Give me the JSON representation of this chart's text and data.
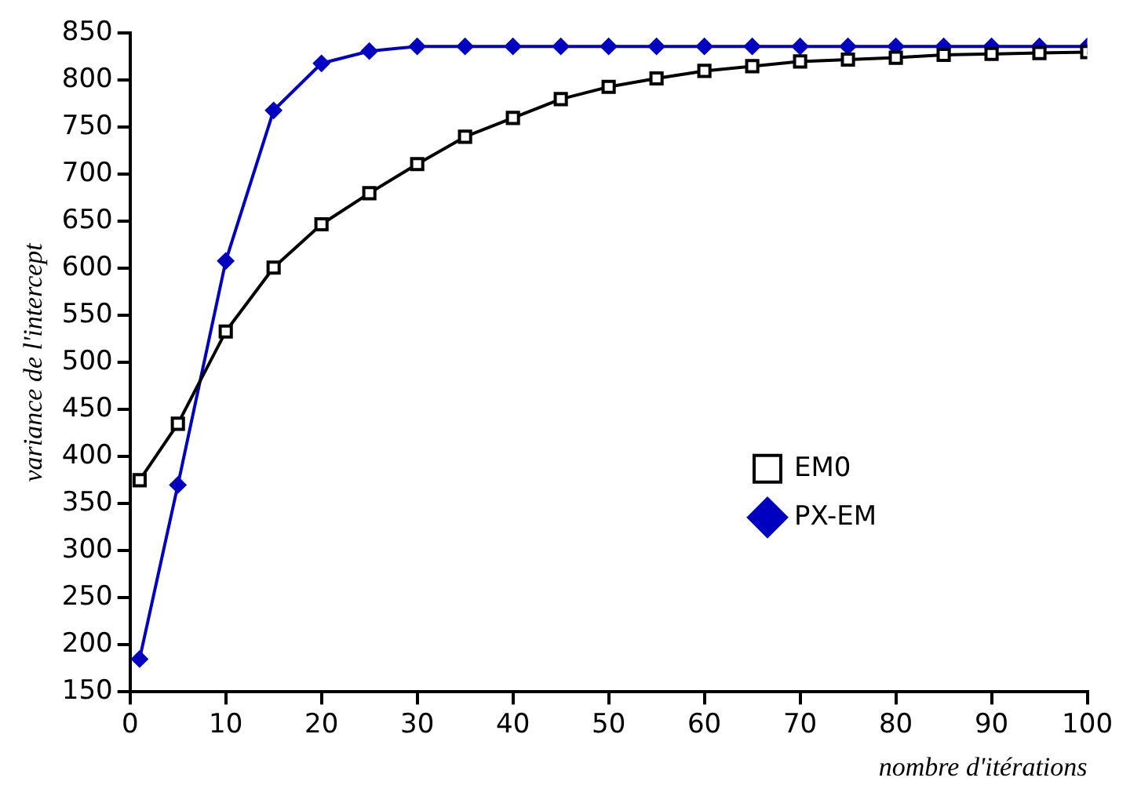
{
  "chart_data": {
    "type": "line",
    "xlabel": "nombre d'itérations",
    "ylabel": "variance de l'intercept",
    "x": [
      1,
      5,
      10,
      15,
      20,
      25,
      30,
      35,
      40,
      45,
      50,
      55,
      60,
      65,
      70,
      75,
      80,
      85,
      90,
      95,
      100
    ],
    "series": [
      {
        "name": "EM0",
        "color": "#000000",
        "marker": "square",
        "values": [
          375,
          435,
          533,
          601,
          647,
          680,
          711,
          740,
          760,
          780,
          793,
          802,
          810,
          815,
          820,
          822,
          824,
          827,
          828,
          829,
          830
        ]
      },
      {
        "name": "PX-EM",
        "color": "#0000c0",
        "marker": "diamond",
        "values": [
          185,
          370,
          608,
          768,
          818,
          831,
          836,
          836,
          836,
          836,
          836,
          836,
          836,
          836,
          836,
          836,
          836,
          836,
          836,
          836,
          836
        ]
      }
    ],
    "xlim": [
      0,
      100
    ],
    "xticks": [
      0,
      10,
      20,
      30,
      40,
      50,
      60,
      70,
      80,
      90,
      100
    ],
    "ylim": [
      150,
      850
    ],
    "yticks": [
      150,
      200,
      250,
      300,
      350,
      400,
      450,
      500,
      550,
      600,
      650,
      700,
      750,
      800,
      850
    ],
    "grid": false,
    "legend": "bottom right",
    "line_style": "solid"
  }
}
